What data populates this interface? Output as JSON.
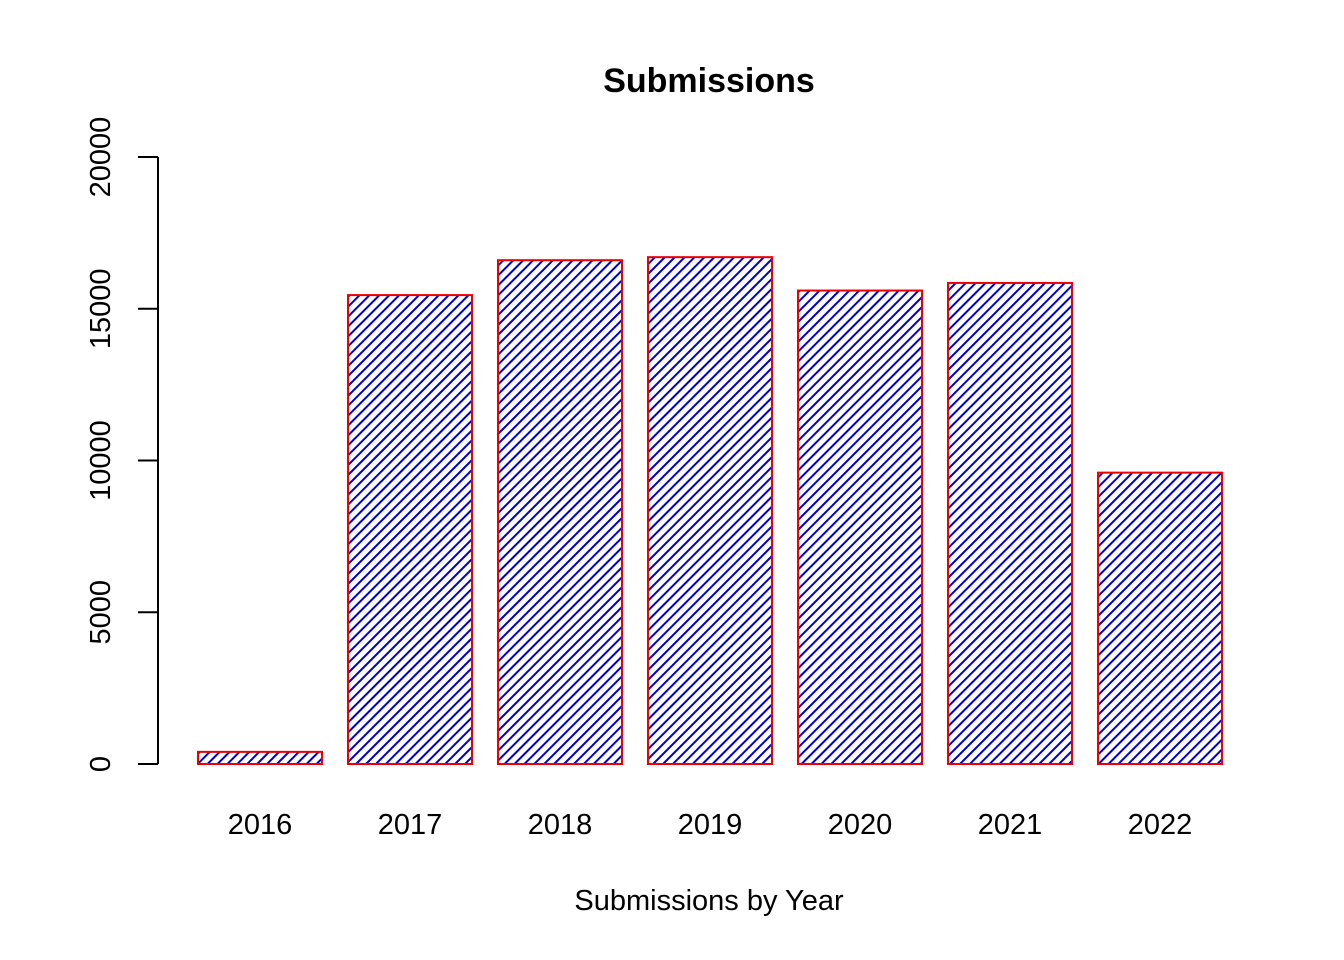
{
  "colors": {
    "bar_fill_lines": "#0000cc",
    "bar_border": "#ee0000",
    "axis": "#000000",
    "background": "#ffffff"
  },
  "chart_data": {
    "type": "bar",
    "title": "Submissions",
    "xlabel": "Submissions by Year",
    "ylabel": "",
    "categories": [
      "2016",
      "2017",
      "2018",
      "2019",
      "2020",
      "2021",
      "2022"
    ],
    "values": [
      400,
      15450,
      16600,
      16700,
      15600,
      15850,
      9600
    ],
    "ylim": [
      0,
      20000
    ],
    "yticks": [
      0,
      5000,
      10000,
      15000,
      20000
    ],
    "ytick_labels": [
      "0",
      "5000",
      "10000",
      "15000",
      "20000"
    ],
    "grid": false,
    "legend": "none",
    "fill_pattern": "diagonal-hatch"
  }
}
